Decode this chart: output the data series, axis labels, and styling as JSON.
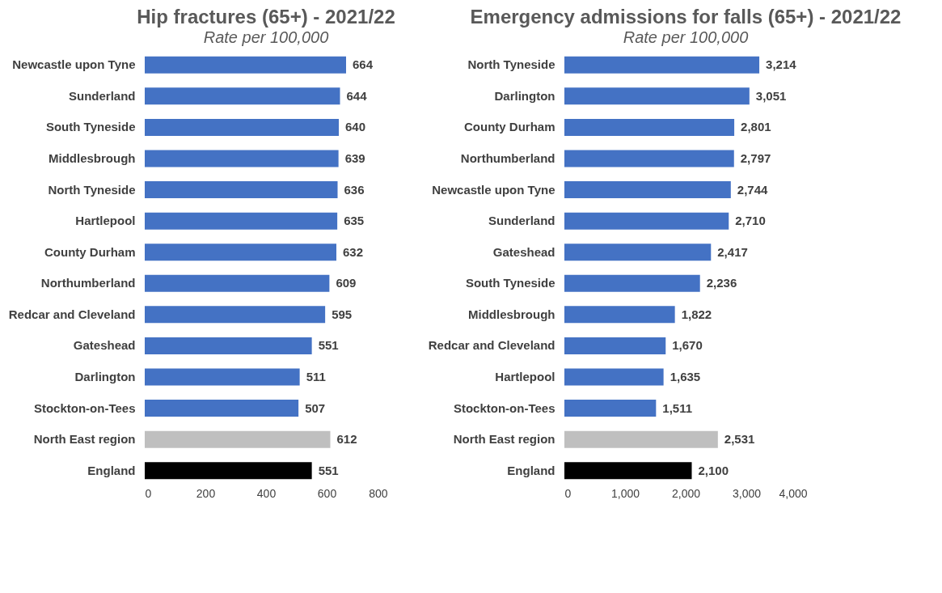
{
  "chart_data": [
    {
      "type": "bar",
      "orientation": "horizontal",
      "title": "Hip fractures (65+) - 2021/22",
      "subtitle": "Rate per 100,000",
      "categories": [
        "Newcastle upon Tyne",
        "Sunderland",
        "South Tyneside",
        "Middlesbrough",
        "North Tyneside",
        "Hartlepool",
        "County Durham",
        "Northumberland",
        "Redcar and Cleveland",
        "Gateshead",
        "Darlington",
        "Stockton-on-Tees",
        "North East region",
        "England"
      ],
      "values": [
        664,
        644,
        640,
        639,
        636,
        635,
        632,
        609,
        595,
        551,
        511,
        507,
        612,
        551
      ],
      "colors": [
        "#4472c4",
        "#4472c4",
        "#4472c4",
        "#4472c4",
        "#4472c4",
        "#4472c4",
        "#4472c4",
        "#4472c4",
        "#4472c4",
        "#4472c4",
        "#4472c4",
        "#4472c4",
        "#bfbfbf",
        "#000000"
      ],
      "xlim": [
        0,
        800
      ],
      "xticks": [
        0,
        200,
        400,
        600,
        800
      ],
      "data_labels": true,
      "grid": false
    },
    {
      "type": "bar",
      "orientation": "horizontal",
      "title": "Emergency admissions for falls (65+) - 2021/22",
      "subtitle": "Rate per 100,000",
      "categories": [
        "North Tyneside",
        "Darlington",
        "County Durham",
        "Northumberland",
        "Newcastle upon Tyne",
        "Sunderland",
        "Gateshead",
        "South Tyneside",
        "Middlesbrough",
        "Redcar and Cleveland",
        "Hartlepool",
        "Stockton-on-Tees",
        "North East region",
        "England"
      ],
      "values": [
        3214,
        3051,
        2801,
        2797,
        2744,
        2710,
        2417,
        2236,
        1822,
        1670,
        1635,
        1511,
        2531,
        2100
      ],
      "colors": [
        "#4472c4",
        "#4472c4",
        "#4472c4",
        "#4472c4",
        "#4472c4",
        "#4472c4",
        "#4472c4",
        "#4472c4",
        "#4472c4",
        "#4472c4",
        "#4472c4",
        "#4472c4",
        "#bfbfbf",
        "#000000"
      ],
      "value_labels": [
        "3,214",
        "3,051",
        "2,801",
        "2,797",
        "2,744",
        "2,710",
        "2,417",
        "2,236",
        "1,822",
        "1,670",
        "1,635",
        "1,511",
        "2,531",
        "2,100"
      ],
      "xlim": [
        0,
        4000
      ],
      "xticks": [
        0,
        {
          "value": 1000,
          "label": "1,000"
        },
        {
          "value": 2000,
          "label": "2,000"
        },
        {
          "value": 3000,
          "label": "3,000"
        },
        {
          "value": 4000,
          "label": "4,000"
        }
      ],
      "grid": false
    }
  ]
}
